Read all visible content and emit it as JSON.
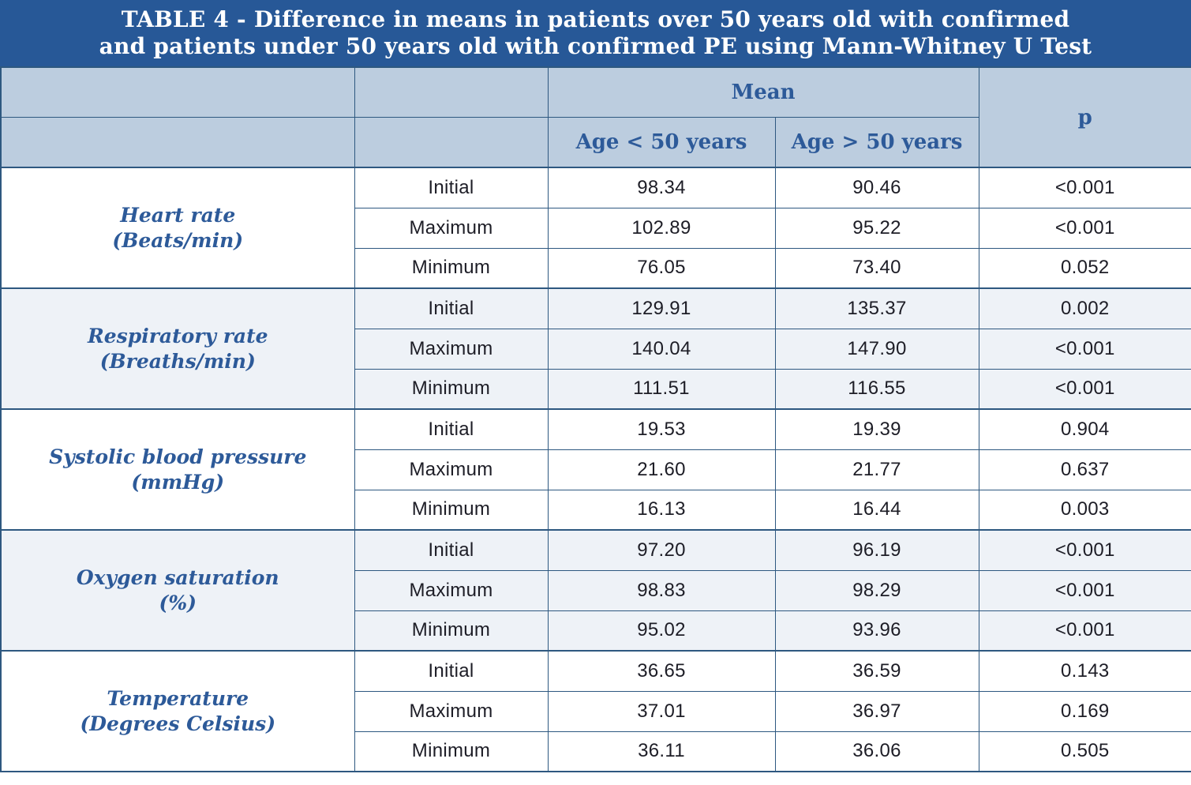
{
  "title": {
    "line1": "TABLE 4 - Difference in means in patients over 50 years old with confirmed",
    "line2": "and patients under 50 years old with confirmed PE using Mann-Whitney U Test"
  },
  "header": {
    "mean": "Mean",
    "p": "p",
    "age_under": "Age < 50 years",
    "age_over": "Age > 50 years"
  },
  "colors": {
    "title_bg": "#275897",
    "header_bg": "#bccddf",
    "border": "#2e5880",
    "shade": "#eef2f7",
    "plain": "#ffffff",
    "heading_text": "#2d5a99",
    "body_text": "#1d1d26",
    "title_text": "#ffffff"
  },
  "groups": [
    {
      "name": "Heart rate",
      "unit": "(Beats/min)",
      "rows": [
        {
          "measure": "Initial",
          "age_under": "98.34",
          "age_over": "90.46",
          "p": "<0.001"
        },
        {
          "measure": "Maximum",
          "age_under": "102.89",
          "age_over": "95.22",
          "p": "<0.001"
        },
        {
          "measure": "Minimum",
          "age_under": "76.05",
          "age_over": "73.40",
          "p": "0.052"
        }
      ]
    },
    {
      "name": "Respiratory rate",
      "unit": "(Breaths/min)",
      "rows": [
        {
          "measure": "Initial",
          "age_under": "129.91",
          "age_over": "135.37",
          "p": "0.002"
        },
        {
          "measure": "Maximum",
          "age_under": "140.04",
          "age_over": "147.90",
          "p": "<0.001"
        },
        {
          "measure": "Minimum",
          "age_under": "111.51",
          "age_over": "116.55",
          "p": "<0.001"
        }
      ]
    },
    {
      "name": "Systolic blood pressure",
      "unit": "(mmHg)",
      "rows": [
        {
          "measure": "Initial",
          "age_under": "19.53",
          "age_over": "19.39",
          "p": "0.904"
        },
        {
          "measure": "Maximum",
          "age_under": "21.60",
          "age_over": "21.77",
          "p": "0.637"
        },
        {
          "measure": "Minimum",
          "age_under": "16.13",
          "age_over": "16.44",
          "p": "0.003"
        }
      ]
    },
    {
      "name": "Oxygen saturation",
      "unit": "(%)",
      "rows": [
        {
          "measure": "Initial",
          "age_under": "97.20",
          "age_over": "96.19",
          "p": "<0.001"
        },
        {
          "measure": "Maximum",
          "age_under": "98.83",
          "age_over": "98.29",
          "p": "<0.001"
        },
        {
          "measure": "Minimum",
          "age_under": "95.02",
          "age_over": "93.96",
          "p": "<0.001"
        }
      ]
    },
    {
      "name": "Temperature",
      "unit": "(Degrees Celsius)",
      "rows": [
        {
          "measure": "Initial",
          "age_under": "36.65",
          "age_over": "36.59",
          "p": "0.143"
        },
        {
          "measure": "Maximum",
          "age_under": "37.01",
          "age_over": "36.97",
          "p": "0.169"
        },
        {
          "measure": "Minimum",
          "age_under": "36.11",
          "age_over": "36.06",
          "p": "0.505"
        }
      ]
    }
  ]
}
